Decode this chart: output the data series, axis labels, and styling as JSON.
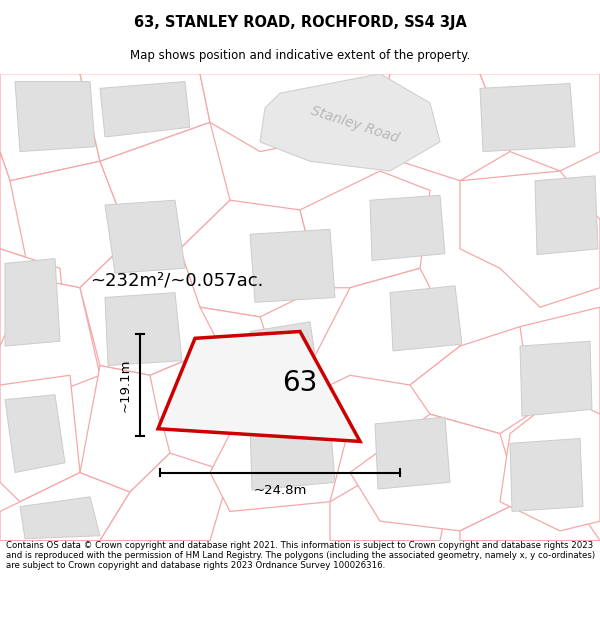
{
  "title": "63, STANLEY ROAD, ROCHFORD, SS4 3JA",
  "subtitle": "Map shows position and indicative extent of the property.",
  "footer": "Contains OS data © Crown copyright and database right 2021. This information is subject to Crown copyright and database rights 2023 and is reproduced with the permission of HM Land Registry. The polygons (including the associated geometry, namely x, y co-ordinates) are subject to Crown copyright and database rights 2023 Ordnance Survey 100026316.",
  "area_label": "~232m²/~0.057ac.",
  "width_label": "~24.8m",
  "height_label": "~19.1m",
  "number_label": "63",
  "map_bg": "#ffffff",
  "plot_outline_color": "#f5a8a8",
  "building_face": "#e0e0e0",
  "building_edge": "#cccccc",
  "highlight_color": "#cc0000",
  "road_label_color": "#b8b8b8",
  "road_shape_color": "#d8d8d8"
}
